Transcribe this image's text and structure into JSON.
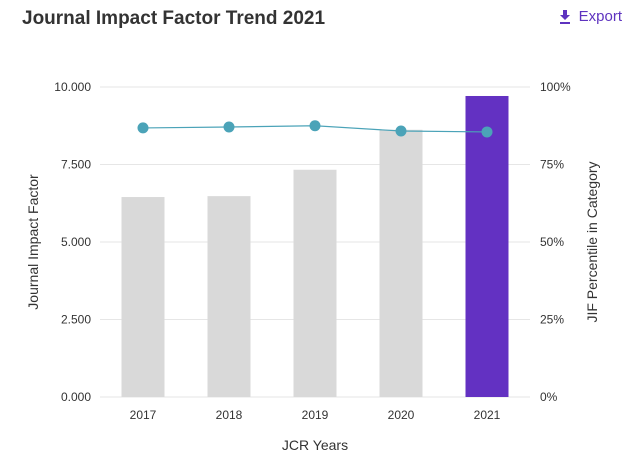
{
  "header": {
    "title": "Journal Impact Factor Trend 2021",
    "export_label": "Export",
    "export_icon": "download-icon"
  },
  "colors": {
    "bar_default": "#D9D9D9",
    "bar_highlight": "#6331C2",
    "line": "#4BA3B8",
    "accent": "#5E33BF",
    "grid": "#E6E6E6"
  },
  "chart_data": {
    "type": "bar",
    "title": "Journal Impact Factor Trend 2021",
    "xlabel": "JCR Years",
    "ylabel": "Journal Impact Factor",
    "y2label": "JIF Percentile in Category",
    "categories": [
      "2017",
      "2018",
      "2019",
      "2020",
      "2021"
    ],
    "ylim": [
      0,
      10
    ],
    "y2lim": [
      0,
      100
    ],
    "yticks": [
      "0.000",
      "2.500",
      "5.000",
      "7.500",
      "10.000"
    ],
    "y2ticks": [
      "0%",
      "25%",
      "50%",
      "75%",
      "100%"
    ],
    "grid": true,
    "highlight_category": "2021",
    "series": [
      {
        "type": "bar",
        "axis": "left",
        "values": [
          6.45,
          6.48,
          7.33,
          8.62,
          9.71
        ]
      },
      {
        "type": "line",
        "axis": "right",
        "values": [
          86.8,
          87.1,
          87.5,
          85.8,
          85.5
        ]
      }
    ]
  }
}
